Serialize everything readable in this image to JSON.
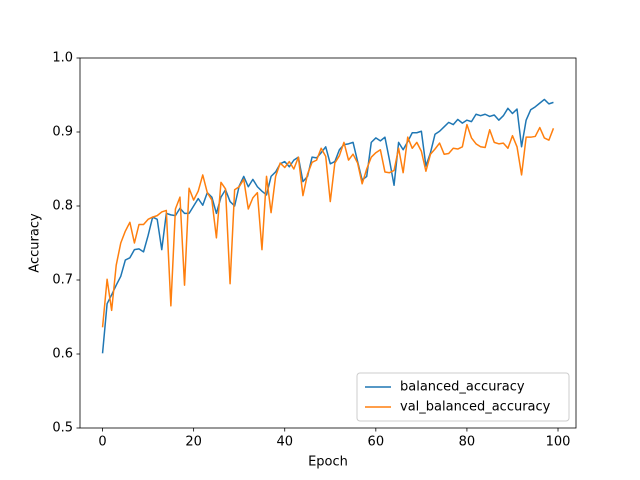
{
  "chart_data": {
    "type": "line",
    "x_label": "Epoch",
    "y_label": "Accuracy",
    "x": [
      0,
      1,
      2,
      3,
      4,
      5,
      6,
      7,
      8,
      9,
      10,
      11,
      12,
      13,
      14,
      15,
      16,
      17,
      18,
      19,
      20,
      21,
      22,
      23,
      24,
      25,
      26,
      27,
      28,
      29,
      30,
      31,
      32,
      33,
      34,
      35,
      36,
      37,
      38,
      39,
      40,
      41,
      42,
      43,
      44,
      45,
      46,
      47,
      48,
      49,
      50,
      51,
      52,
      53,
      54,
      55,
      56,
      57,
      58,
      59,
      60,
      61,
      62,
      63,
      64,
      65,
      66,
      67,
      68,
      69,
      70,
      71,
      72,
      73,
      74,
      75,
      76,
      77,
      78,
      79,
      80,
      81,
      82,
      83,
      84,
      85,
      86,
      87,
      88,
      89,
      90,
      91,
      92,
      93,
      94,
      95,
      96,
      97,
      98,
      99
    ],
    "series": [
      {
        "name": "balanced_accuracy",
        "color": "#1f77b4",
        "values": [
          0.601,
          0.668,
          0.68,
          0.693,
          0.705,
          0.727,
          0.73,
          0.741,
          0.742,
          0.738,
          0.76,
          0.785,
          0.782,
          0.741,
          0.79,
          0.788,
          0.787,
          0.797,
          0.79,
          0.79,
          0.8,
          0.81,
          0.801,
          0.818,
          0.812,
          0.79,
          0.812,
          0.822,
          0.806,
          0.8,
          0.827,
          0.84,
          0.826,
          0.836,
          0.826,
          0.82,
          0.815,
          0.84,
          0.846,
          0.857,
          0.86,
          0.853,
          0.862,
          0.866,
          0.833,
          0.84,
          0.866,
          0.865,
          0.872,
          0.88,
          0.857,
          0.86,
          0.876,
          0.883,
          0.884,
          0.886,
          0.86,
          0.835,
          0.84,
          0.886,
          0.892,
          0.888,
          0.893,
          0.862,
          0.828,
          0.886,
          0.876,
          0.887,
          0.899,
          0.899,
          0.901,
          0.854,
          0.872,
          0.897,
          0.901,
          0.907,
          0.913,
          0.91,
          0.917,
          0.912,
          0.916,
          0.914,
          0.924,
          0.922,
          0.924,
          0.921,
          0.923,
          0.916,
          0.922,
          0.932,
          0.925,
          0.931,
          0.88,
          0.916,
          0.93,
          0.934,
          0.939,
          0.944,
          0.938,
          0.94
        ]
      },
      {
        "name": "val_balanced_accuracy",
        "color": "#ff7f0e",
        "values": [
          0.636,
          0.701,
          0.659,
          0.72,
          0.75,
          0.766,
          0.778,
          0.75,
          0.775,
          0.775,
          0.782,
          0.785,
          0.787,
          0.792,
          0.794,
          0.665,
          0.796,
          0.812,
          0.693,
          0.824,
          0.808,
          0.82,
          0.842,
          0.818,
          0.808,
          0.757,
          0.832,
          0.823,
          0.695,
          0.822,
          0.826,
          0.836,
          0.796,
          0.811,
          0.818,
          0.741,
          0.84,
          0.791,
          0.84,
          0.858,
          0.852,
          0.86,
          0.85,
          0.866,
          0.814,
          0.843,
          0.859,
          0.862,
          0.878,
          0.867,
          0.806,
          0.858,
          0.868,
          0.886,
          0.862,
          0.87,
          0.858,
          0.83,
          0.85,
          0.866,
          0.872,
          0.876,
          0.846,
          0.845,
          0.848,
          0.878,
          0.845,
          0.893,
          0.878,
          0.886,
          0.874,
          0.847,
          0.87,
          0.877,
          0.885,
          0.87,
          0.871,
          0.878,
          0.877,
          0.88,
          0.91,
          0.892,
          0.884,
          0.88,
          0.879,
          0.903,
          0.886,
          0.884,
          0.885,
          0.878,
          0.895,
          0.88,
          0.842,
          0.893,
          0.893,
          0.894,
          0.906,
          0.892,
          0.889,
          0.905
        ]
      }
    ],
    "xlim": [
      -4.95,
      103.95
    ],
    "ylim": [
      0.5,
      1.0
    ],
    "xticks": [
      0,
      20,
      40,
      60,
      80,
      100
    ],
    "yticks": [
      0.5,
      0.6,
      0.7,
      0.8,
      0.9,
      {
        "value": 1.0,
        "label": "1.0"
      }
    ],
    "legend": "lower right"
  }
}
